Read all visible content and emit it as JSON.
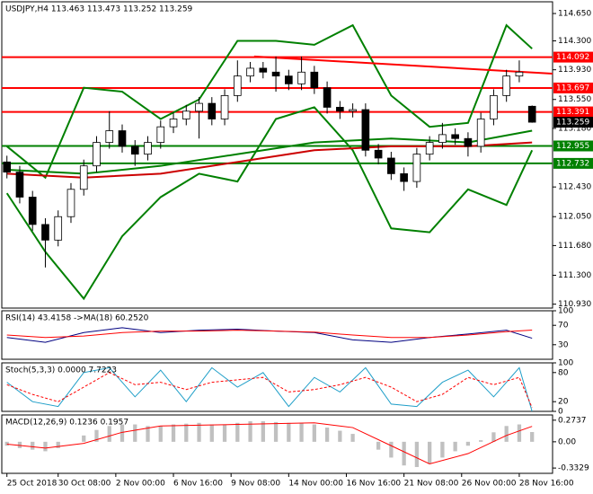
{
  "chart_data": [
    {
      "type": "candlestick",
      "title": "USDJPY,H4  113.463 113.473 113.252 113.259",
      "xlim": [
        -0.4,
        42.6
      ],
      "ylim": [
        110.88,
        114.8
      ],
      "yticks": [
        {
          "value": 114.65,
          "label": "114.650"
        },
        {
          "value": 114.3,
          "label": "114.300"
        },
        {
          "value": 113.93,
          "label": "113.930"
        },
        {
          "value": 113.55,
          "label": "113.550"
        },
        {
          "value": 113.18,
          "label": "113.180"
        },
        {
          "value": 112.43,
          "label": "112.430"
        },
        {
          "value": 112.05,
          "label": "112.050"
        },
        {
          "value": 111.68,
          "label": "111.680"
        },
        {
          "value": 111.3,
          "label": "111.300"
        },
        {
          "value": 110.93,
          "label": "110.930"
        }
      ],
      "open": [
        112.75,
        112.62,
        112.3,
        111.95,
        111.75,
        112.05,
        112.4,
        112.7,
        113.0,
        113.15,
        112.95,
        112.85,
        113.0,
        113.2,
        113.3,
        113.4,
        113.5,
        113.3,
        113.6,
        113.85,
        113.95,
        113.9,
        113.85,
        113.75,
        113.9,
        113.7,
        113.45,
        113.4,
        113.42,
        112.9,
        112.8,
        112.6,
        112.5,
        112.85,
        113.0,
        113.1,
        113.05,
        112.95,
        113.3,
        113.6,
        113.85,
        113.463
      ],
      "high": [
        112.83,
        112.7,
        112.38,
        112.03,
        112.13,
        112.48,
        112.78,
        113.08,
        113.4,
        113.23,
        113.03,
        113.08,
        113.28,
        113.38,
        113.48,
        113.58,
        113.58,
        113.68,
        114.05,
        114.03,
        114.03,
        114.1,
        113.93,
        114.1,
        113.98,
        113.78,
        113.53,
        113.5,
        113.5,
        112.98,
        112.88,
        112.68,
        112.93,
        113.08,
        113.25,
        113.18,
        113.13,
        113.38,
        113.68,
        113.93,
        114.05,
        113.473
      ],
      "low": [
        112.54,
        112.22,
        111.87,
        111.4,
        111.67,
        111.97,
        112.32,
        112.62,
        112.92,
        112.87,
        112.7,
        112.77,
        112.92,
        113.12,
        113.22,
        113.05,
        113.22,
        113.22,
        113.52,
        113.77,
        113.82,
        113.65,
        113.67,
        113.67,
        113.62,
        113.37,
        113.3,
        113.32,
        112.82,
        112.72,
        112.52,
        112.38,
        112.42,
        112.77,
        112.92,
        112.97,
        112.82,
        112.87,
        113.22,
        113.52,
        113.77,
        113.252
      ],
      "close": [
        112.62,
        112.3,
        111.95,
        111.75,
        112.05,
        112.4,
        112.7,
        113.0,
        113.15,
        112.95,
        112.85,
        113.0,
        113.2,
        113.3,
        113.4,
        113.5,
        113.3,
        113.6,
        113.85,
        113.95,
        113.9,
        113.85,
        113.75,
        113.9,
        113.7,
        113.45,
        113.4,
        113.42,
        112.9,
        112.8,
        112.6,
        112.5,
        112.85,
        113.0,
        113.1,
        113.05,
        112.95,
        113.3,
        113.6,
        113.85,
        113.9,
        113.259
      ],
      "overlays": [
        {
          "color": "#008000",
          "x": [
            0,
            3,
            6,
            9,
            12,
            15,
            18,
            21,
            24,
            27,
            30,
            33,
            36,
            39,
            41
          ],
          "values": [
            112.95,
            112.55,
            113.7,
            113.65,
            113.3,
            113.55,
            114.3,
            114.3,
            114.25,
            114.5,
            113.6,
            113.2,
            113.25,
            114.5,
            114.2
          ]
        },
        {
          "color": "#008000",
          "x": [
            0,
            3,
            6,
            9,
            12,
            15,
            18,
            21,
            24,
            27,
            30,
            33,
            36,
            39,
            41
          ],
          "values": [
            112.35,
            111.6,
            111.0,
            111.8,
            112.3,
            112.6,
            112.5,
            113.3,
            113.45,
            112.9,
            111.9,
            111.85,
            112.4,
            112.2,
            112.9
          ]
        },
        {
          "color": "#cc0000",
          "x": [
            0,
            6,
            12,
            18,
            24,
            30,
            36,
            41
          ],
          "values": [
            112.6,
            112.55,
            112.6,
            112.75,
            112.9,
            112.95,
            112.95,
            113.0
          ]
        },
        {
          "color": "#008000",
          "x": [
            0,
            6,
            12,
            18,
            24,
            30,
            36,
            41
          ],
          "values": [
            112.65,
            112.6,
            112.7,
            112.85,
            113.0,
            113.05,
            113.0,
            113.15
          ]
        },
        {
          "color": "#ff0000",
          "x": [
            19.3,
            42.6
          ],
          "values": [
            114.1,
            113.88
          ]
        }
      ],
      "levels": [
        {
          "value": 114.092,
          "color": "#ff0000"
        },
        {
          "value": 113.697,
          "color": "#ff0000"
        },
        {
          "value": 113.391,
          "color": "#ff0000"
        },
        {
          "value": 112.955,
          "color": "#008000"
        },
        {
          "value": 112.732,
          "color": "#008000"
        }
      ]
    },
    {
      "type": "line",
      "title": "RSI(14) 43.4158 ->MA(18) 60.2520",
      "ylim": [
        0,
        100
      ],
      "yticks": [
        100,
        70,
        30
      ],
      "series": [
        {
          "color": "#000080",
          "x": [
            0,
            3,
            6,
            9,
            12,
            15,
            18,
            21,
            24,
            27,
            30,
            33,
            36,
            39,
            41
          ],
          "values": [
            45,
            35,
            55,
            65,
            55,
            60,
            62,
            58,
            55,
            40,
            35,
            45,
            52,
            60,
            43.4158
          ]
        },
        {
          "color": "#ff0000",
          "x": [
            0,
            3,
            6,
            9,
            12,
            15,
            18,
            21,
            24,
            27,
            30,
            33,
            36,
            39,
            41
          ],
          "values": [
            50,
            45,
            48,
            55,
            58,
            58,
            60,
            58,
            56,
            50,
            45,
            45,
            50,
            57,
            60.252
          ]
        }
      ]
    },
    {
      "type": "line",
      "title": "Stoch(5,3,3) 0.0000 7.7223",
      "ylim": [
        0,
        100
      ],
      "yticks": [
        100,
        80,
        20,
        0
      ],
      "series": [
        {
          "color": "#1e9ec8",
          "x": [
            0,
            2,
            4,
            6,
            8,
            10,
            12,
            14,
            16,
            18,
            20,
            22,
            24,
            26,
            28,
            30,
            32,
            34,
            36,
            38,
            40,
            41
          ],
          "values": [
            60,
            20,
            10,
            80,
            90,
            30,
            85,
            20,
            90,
            50,
            80,
            10,
            70,
            40,
            90,
            15,
            10,
            60,
            85,
            30,
            90,
            0
          ]
        },
        {
          "color": "#ff0000",
          "dash": true,
          "x": [
            0,
            2,
            4,
            6,
            8,
            10,
            12,
            14,
            16,
            18,
            20,
            22,
            24,
            26,
            28,
            30,
            32,
            34,
            36,
            38,
            40,
            41
          ],
          "values": [
            55,
            35,
            20,
            50,
            80,
            55,
            60,
            45,
            60,
            65,
            70,
            40,
            45,
            55,
            70,
            50,
            20,
            35,
            70,
            55,
            70,
            7.7223
          ]
        }
      ]
    },
    {
      "type": "macd",
      "title": "MACD(12,26,9) 0.1236 0.1957",
      "ylim": [
        -0.4,
        0.34
      ],
      "yticks": [
        0.2737,
        {
          "value": 0,
          "label": "0.00"
        },
        -0.3329
      ],
      "histogram": {
        "color": "#c0c0c0",
        "values": [
          -0.05,
          -0.08,
          -0.1,
          -0.12,
          -0.08,
          0.0,
          0.08,
          0.15,
          0.2,
          0.22,
          0.22,
          0.2,
          0.2,
          0.22,
          0.23,
          0.24,
          0.22,
          0.22,
          0.24,
          0.26,
          0.26,
          0.25,
          0.24,
          0.24,
          0.22,
          0.18,
          0.14,
          0.1,
          0.0,
          -0.1,
          -0.2,
          -0.3,
          -0.32,
          -0.28,
          -0.2,
          -0.12,
          -0.05,
          0.02,
          0.12,
          0.2,
          0.22,
          0.1236
        ]
      },
      "series": [
        {
          "color": "#ff0000",
          "x": [
            0,
            3,
            6,
            9,
            12,
            15,
            18,
            21,
            24,
            27,
            30,
            33,
            36,
            39,
            41
          ],
          "values": [
            -0.03,
            -0.08,
            -0.02,
            0.12,
            0.2,
            0.21,
            0.22,
            0.23,
            0.24,
            0.18,
            -0.05,
            -0.28,
            -0.15,
            0.08,
            0.1957
          ]
        }
      ],
      "xticks": [
        {
          "value": 0,
          "label": "25 Oct 2018"
        },
        {
          "value": 4,
          "label": "30 Oct 08:00"
        },
        {
          "value": 8.5,
          "label": "2 Nov 00:00"
        },
        {
          "value": 13,
          "label": "6 Nov 16:00"
        },
        {
          "value": 17.5,
          "label": "9 Nov 08:00"
        },
        {
          "value": 22,
          "label": "14 Nov 00:00"
        },
        {
          "value": 26.5,
          "label": "16 Nov 16:00"
        },
        {
          "value": 31,
          "label": "21 Nov 08:00"
        },
        {
          "value": 35.5,
          "label": "26 Nov 00:00"
        },
        {
          "value": 40,
          "label": "28 Nov 16:00"
        }
      ]
    }
  ]
}
